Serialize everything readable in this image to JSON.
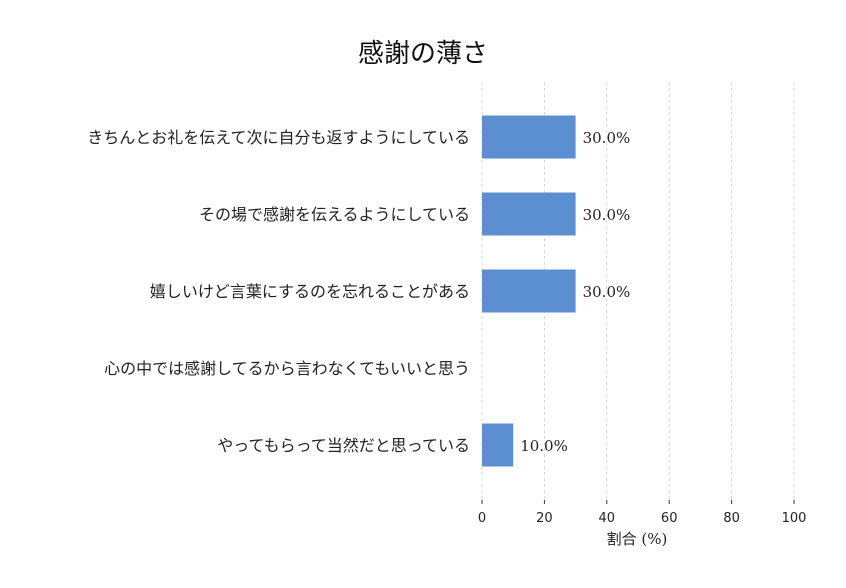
{
  "chart_data": {
    "type": "bar",
    "orientation": "horizontal",
    "title": "感謝の薄さ",
    "xlabel": "割合 (%)",
    "ylabel": "",
    "xlim": [
      0,
      100
    ],
    "xticks": [
      0,
      20,
      40,
      60,
      80,
      100
    ],
    "grid": true,
    "bar_color": "#5b8fd1",
    "categories": [
      "きちんとお礼を伝えて次に自分も返すようにしている",
      "その場で感謝を伝えるようにしている",
      "嬉しいけど言葉にするのを忘れることがある",
      "心の中では感謝してるから言わなくてもいいと思う",
      "やってもらって当然だと思っている"
    ],
    "values": [
      30,
      30,
      30,
      0,
      10
    ],
    "value_labels": [
      "30.0%",
      "30.0%",
      "30.0%",
      "",
      "10.0%"
    ]
  }
}
